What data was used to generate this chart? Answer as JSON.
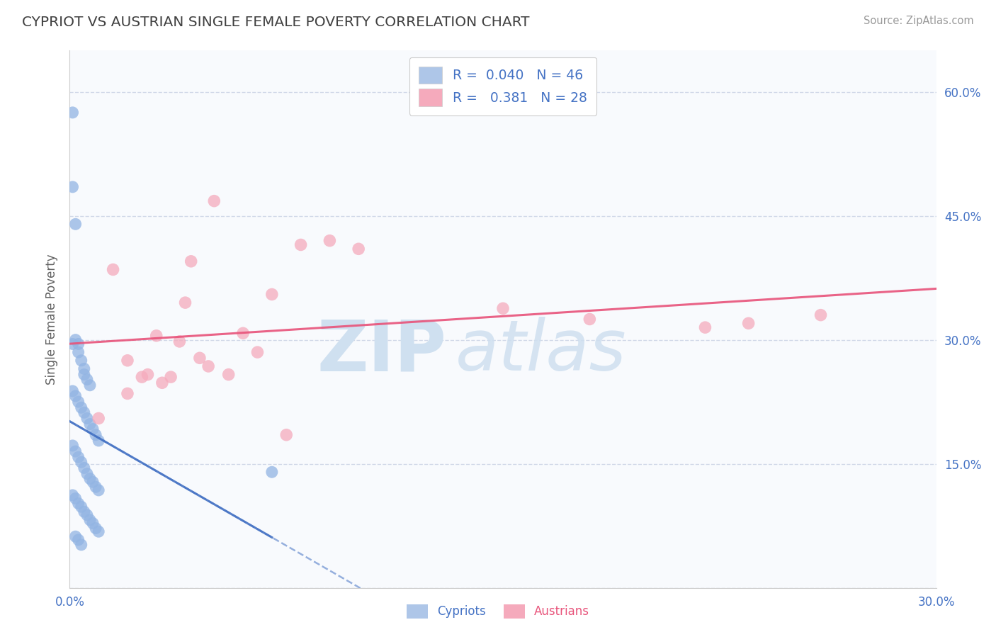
{
  "title": "CYPRIOT VS AUSTRIAN SINGLE FEMALE POVERTY CORRELATION CHART",
  "source_text": "Source: ZipAtlas.com",
  "ylabel": "Single Female Poverty",
  "xlim": [
    0.0,
    0.3
  ],
  "ylim": [
    0.0,
    0.65
  ],
  "xtick_positions": [
    0.0,
    0.3
  ],
  "xtick_labels": [
    "0.0%",
    "30.0%"
  ],
  "ytick_positions": [
    0.0,
    0.15,
    0.3,
    0.45,
    0.6
  ],
  "ytick_labels_right": [
    "",
    "15.0%",
    "30.0%",
    "45.0%",
    "60.0%"
  ],
  "cypriot_color": "#92b4e3",
  "austrian_color": "#f5aabc",
  "cypriot_line_color": "#4472c4",
  "austrian_line_color": "#e8537a",
  "title_color": "#404040",
  "source_color": "#999999",
  "watermark_zip_color": "#cfe0f0",
  "watermark_atlas_color": "#cfe0f0",
  "legend_text_color": "#4472c4",
  "legend_box_blue": "#aec6e8",
  "legend_box_pink": "#f5aabc",
  "R_cypriot": 0.04,
  "N_cypriot": 46,
  "R_austrian": 0.381,
  "N_austrian": 28,
  "cypriot_x": [
    0.001,
    0.001,
    0.002,
    0.003,
    0.003,
    0.004,
    0.005,
    0.005,
    0.006,
    0.007,
    0.001,
    0.002,
    0.003,
    0.004,
    0.005,
    0.006,
    0.007,
    0.008,
    0.009,
    0.01,
    0.001,
    0.002,
    0.003,
    0.004,
    0.005,
    0.006,
    0.007,
    0.008,
    0.009,
    0.01,
    0.001,
    0.002,
    0.003,
    0.004,
    0.005,
    0.006,
    0.007,
    0.008,
    0.009,
    0.01,
    0.002,
    0.003,
    0.004,
    0.07,
    0.001,
    0.002
  ],
  "cypriot_y": [
    0.575,
    0.485,
    0.44,
    0.295,
    0.285,
    0.275,
    0.265,
    0.258,
    0.252,
    0.245,
    0.238,
    0.232,
    0.225,
    0.218,
    0.212,
    0.205,
    0.198,
    0.192,
    0.185,
    0.178,
    0.172,
    0.165,
    0.158,
    0.152,
    0.145,
    0.138,
    0.132,
    0.128,
    0.122,
    0.118,
    0.112,
    0.108,
    0.102,
    0.098,
    0.092,
    0.088,
    0.082,
    0.078,
    0.072,
    0.068,
    0.062,
    0.058,
    0.052,
    0.14,
    0.295,
    0.3
  ],
  "austrian_x": [
    0.01,
    0.015,
    0.02,
    0.02,
    0.025,
    0.027,
    0.03,
    0.032,
    0.035,
    0.038,
    0.04,
    0.042,
    0.045,
    0.048,
    0.05,
    0.055,
    0.06,
    0.065,
    0.07,
    0.075,
    0.08,
    0.09,
    0.1,
    0.15,
    0.18,
    0.22,
    0.235,
    0.26
  ],
  "austrian_y": [
    0.205,
    0.385,
    0.275,
    0.235,
    0.255,
    0.258,
    0.305,
    0.248,
    0.255,
    0.298,
    0.345,
    0.395,
    0.278,
    0.268,
    0.468,
    0.258,
    0.308,
    0.285,
    0.355,
    0.185,
    0.415,
    0.42,
    0.41,
    0.338,
    0.325,
    0.315,
    0.32,
    0.33
  ],
  "background_color": "#ffffff",
  "grid_color": "#d0d8e8",
  "plot_bg_color": "#f8fafd",
  "cypriot_trend_start_x": 0.0,
  "cypriot_trend_end_x": 0.07,
  "austrian_trend_start_x": 0.0,
  "austrian_trend_end_x": 0.3
}
